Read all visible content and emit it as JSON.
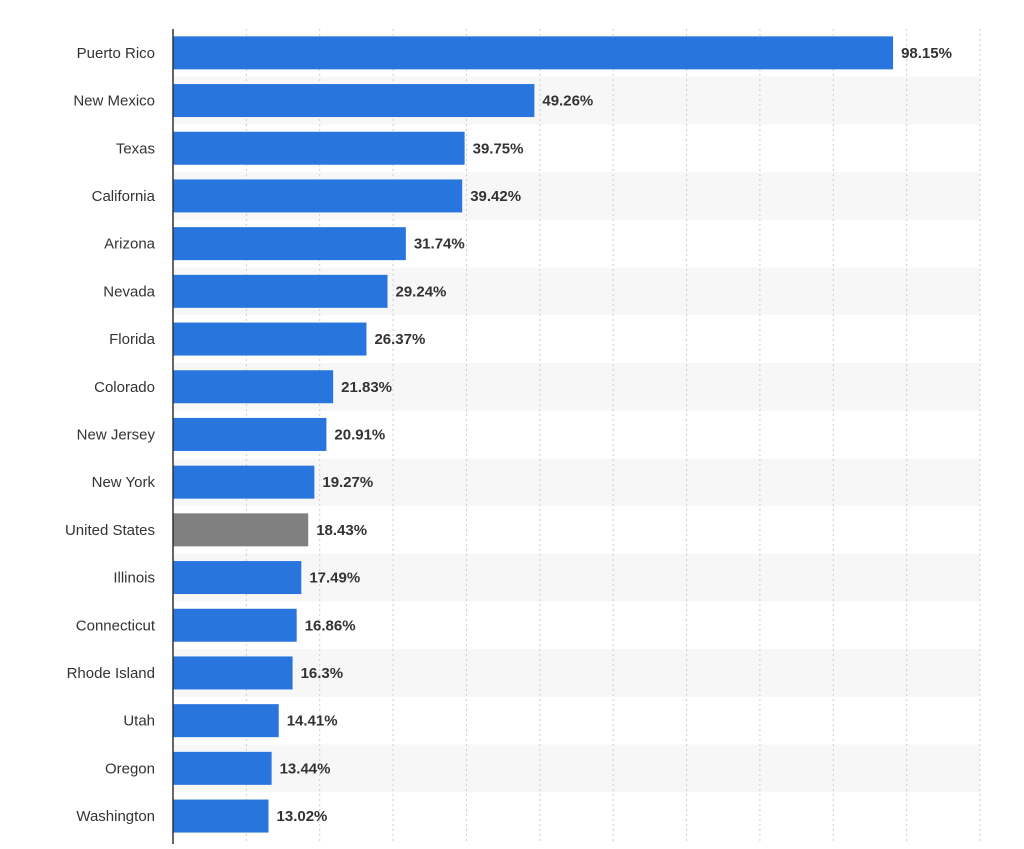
{
  "chart_data": {
    "type": "bar",
    "orientation": "horizontal",
    "title": "",
    "xlabel": "",
    "ylabel": "",
    "xlim": [
      0,
      110
    ],
    "grid": true,
    "value_suffix": "%",
    "categories": [
      "Puerto Rico",
      "New Mexico",
      "Texas",
      "California",
      "Arizona",
      "Nevada",
      "Florida",
      "Colorado",
      "New Jersey",
      "New York",
      "United States",
      "Illinois",
      "Connecticut",
      "Rhode Island",
      "Utah",
      "Oregon",
      "Washington"
    ],
    "values": [
      98.15,
      49.26,
      39.75,
      39.42,
      31.74,
      29.24,
      26.37,
      21.83,
      20.91,
      19.27,
      18.43,
      17.49,
      16.86,
      16.3,
      14.41,
      13.44,
      13.02
    ],
    "value_labels": [
      "98.15%",
      "49.26%",
      "39.75%",
      "39.42%",
      "31.74%",
      "29.24%",
      "26.37%",
      "21.83%",
      "20.91%",
      "19.27%",
      "18.43%",
      "17.49%",
      "16.86%",
      "16.3%",
      "14.41%",
      "13.44%",
      "13.02%"
    ],
    "highlight_category": "United States",
    "colors": {
      "bar": "#2876dd",
      "highlight": "#808080",
      "grid": "#cccccc",
      "axis": "#333333",
      "band": "#f7f7f7",
      "text": "#333333"
    }
  }
}
